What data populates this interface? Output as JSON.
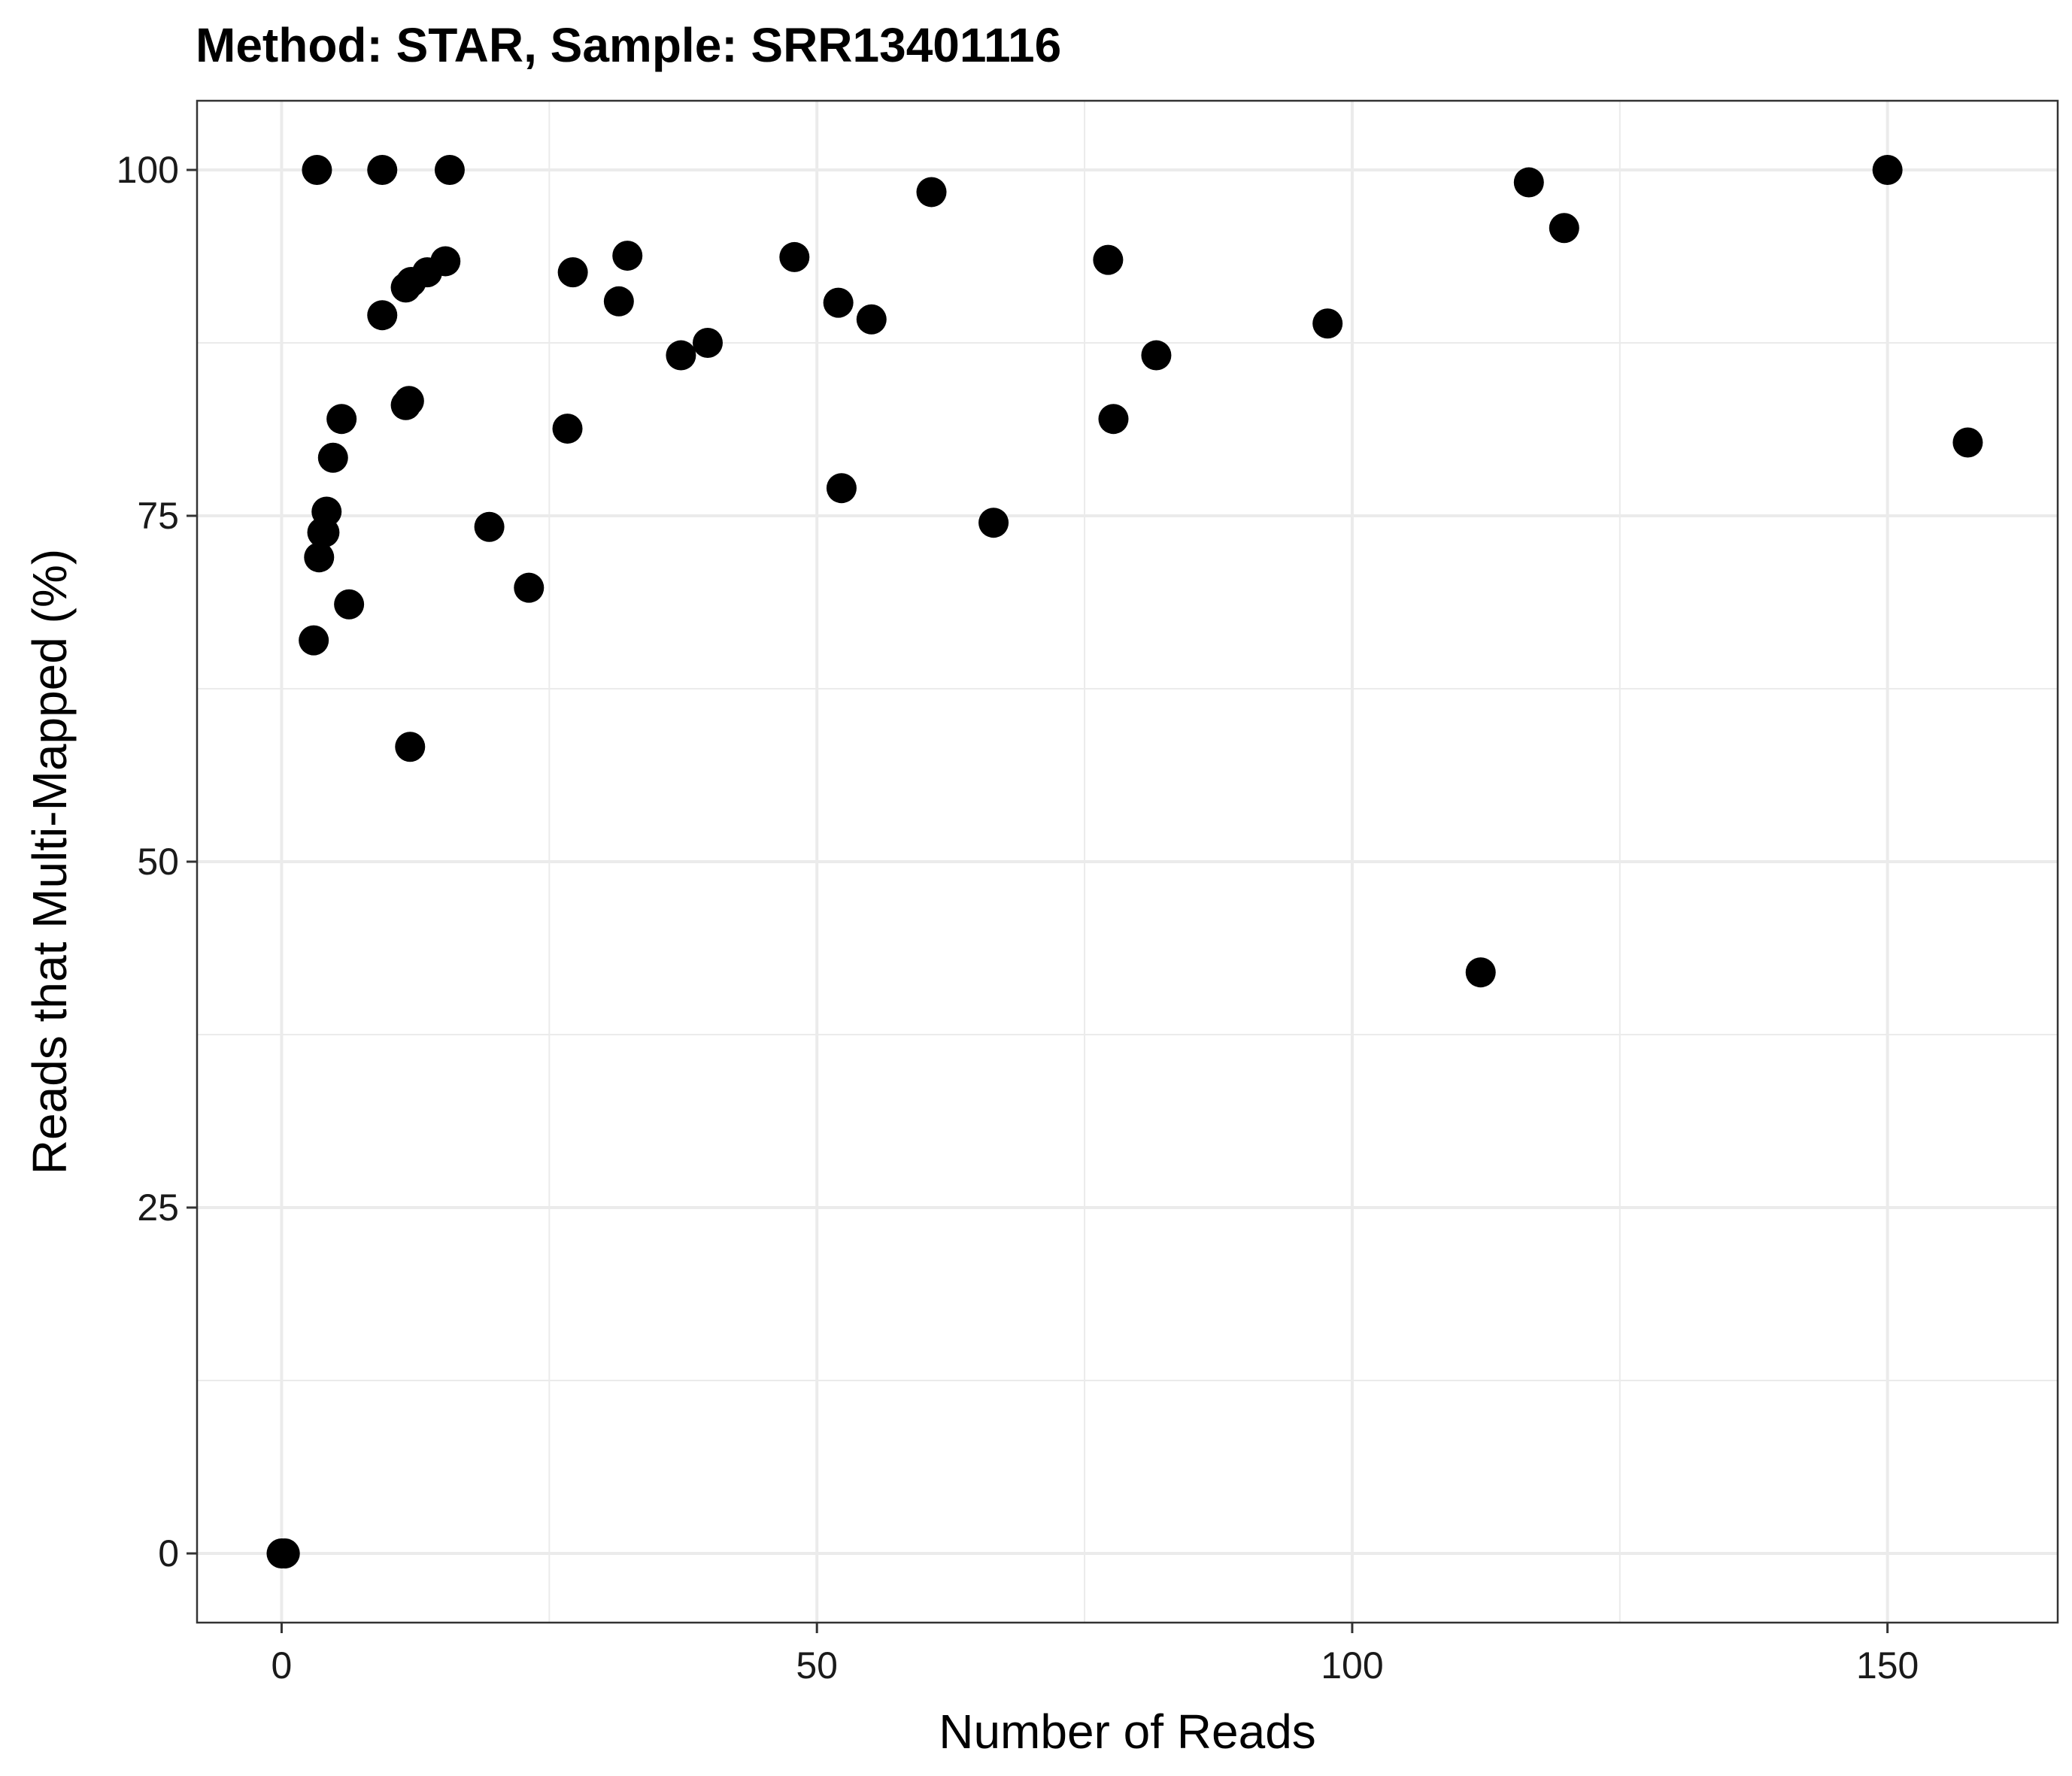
{
  "chart_data": {
    "type": "scatter",
    "title": "Method: STAR, Sample: SRR13401116",
    "xlabel": "Number of Reads",
    "ylabel": "Reads that Multi-Mapped (%)",
    "xlim": [
      -7.9,
      165.9
    ],
    "ylim": [
      -5,
      105
    ],
    "x_ticks": [
      0,
      50,
      100,
      150
    ],
    "y_ticks": [
      0,
      25,
      50,
      75,
      100
    ],
    "x_tick_labels": [
      "0",
      "50",
      "100",
      "150"
    ],
    "y_tick_labels": [
      "0",
      "25",
      "50",
      "75",
      "100"
    ],
    "grid": true,
    "legend": "none",
    "point_color": "#000000",
    "series": [
      {
        "x": [
          0,
          0.3,
          3,
          3.3,
          3.5,
          3.8,
          4,
          4.2,
          4.8,
          5.6,
          6.3,
          9.4,
          9.4,
          11.6,
          11.6,
          11.9,
          12,
          12.1,
          13.6,
          15.3,
          15.7,
          19.4,
          23.1,
          26.7,
          27.2,
          31.5,
          32.3,
          37.3,
          39.8,
          47.9,
          52,
          52.3,
          55.1,
          60.7,
          66.5,
          77.2,
          77.7,
          81.7,
          97.7,
          112,
          116.5,
          119.8,
          150,
          157.5
        ],
        "y": [
          0,
          0,
          66,
          100,
          72,
          73.8,
          73.8,
          75.3,
          79.2,
          82,
          68.6,
          100,
          89.5,
          91.5,
          83,
          83.3,
          58.3,
          91.9,
          92.6,
          93.4,
          100,
          74.2,
          69.8,
          81.3,
          92.6,
          90.5,
          93.8,
          86.6,
          87.5,
          93.7,
          90.4,
          77,
          89.2,
          98.4,
          74.5,
          93.5,
          82,
          86.6,
          88.9,
          42,
          99.1,
          95.8,
          100,
          80.3
        ]
      }
    ]
  }
}
